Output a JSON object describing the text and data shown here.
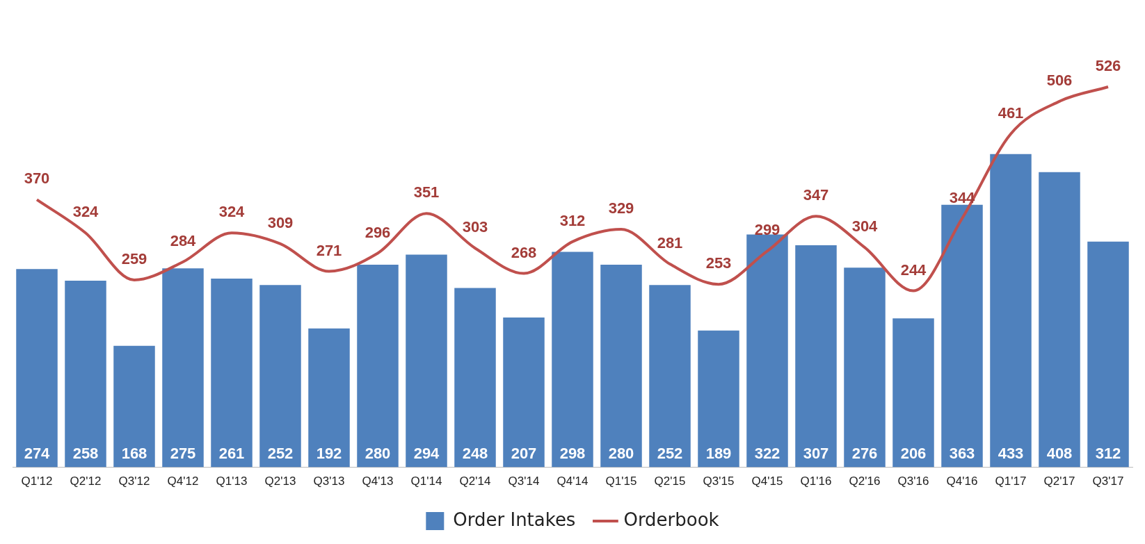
{
  "chart_data": {
    "type": "bar",
    "categories": [
      "Q1'12",
      "Q2'12",
      "Q3'12",
      "Q4'12",
      "Q1'13",
      "Q2'13",
      "Q3'13",
      "Q4'13",
      "Q1'14",
      "Q2'14",
      "Q3'14",
      "Q4'14",
      "Q1'15",
      "Q2'15",
      "Q3'15",
      "Q4'15",
      "Q1'16",
      "Q2'16",
      "Q3'16",
      "Q4'16",
      "Q1'17",
      "Q2'17",
      "Q3'17"
    ],
    "series": [
      {
        "name": "Order Intakes",
        "color": "#4f81bd",
        "values": [
          274,
          258,
          168,
          275,
          261,
          252,
          192,
          280,
          294,
          248,
          207,
          298,
          280,
          252,
          189,
          322,
          307,
          276,
          206,
          363,
          433,
          408,
          312
        ]
      },
      {
        "name": "Orderbook",
        "type": "line",
        "color": "#c0504d",
        "values": [
          370,
          324,
          259,
          284,
          324,
          309,
          271,
          296,
          351,
          303,
          268,
          312,
          329,
          281,
          253,
          299,
          347,
          304,
          244,
          344,
          461,
          506,
          526
        ]
      }
    ],
    "data_labels": true,
    "legend": "bottom",
    "grid": false,
    "marker": "none"
  }
}
